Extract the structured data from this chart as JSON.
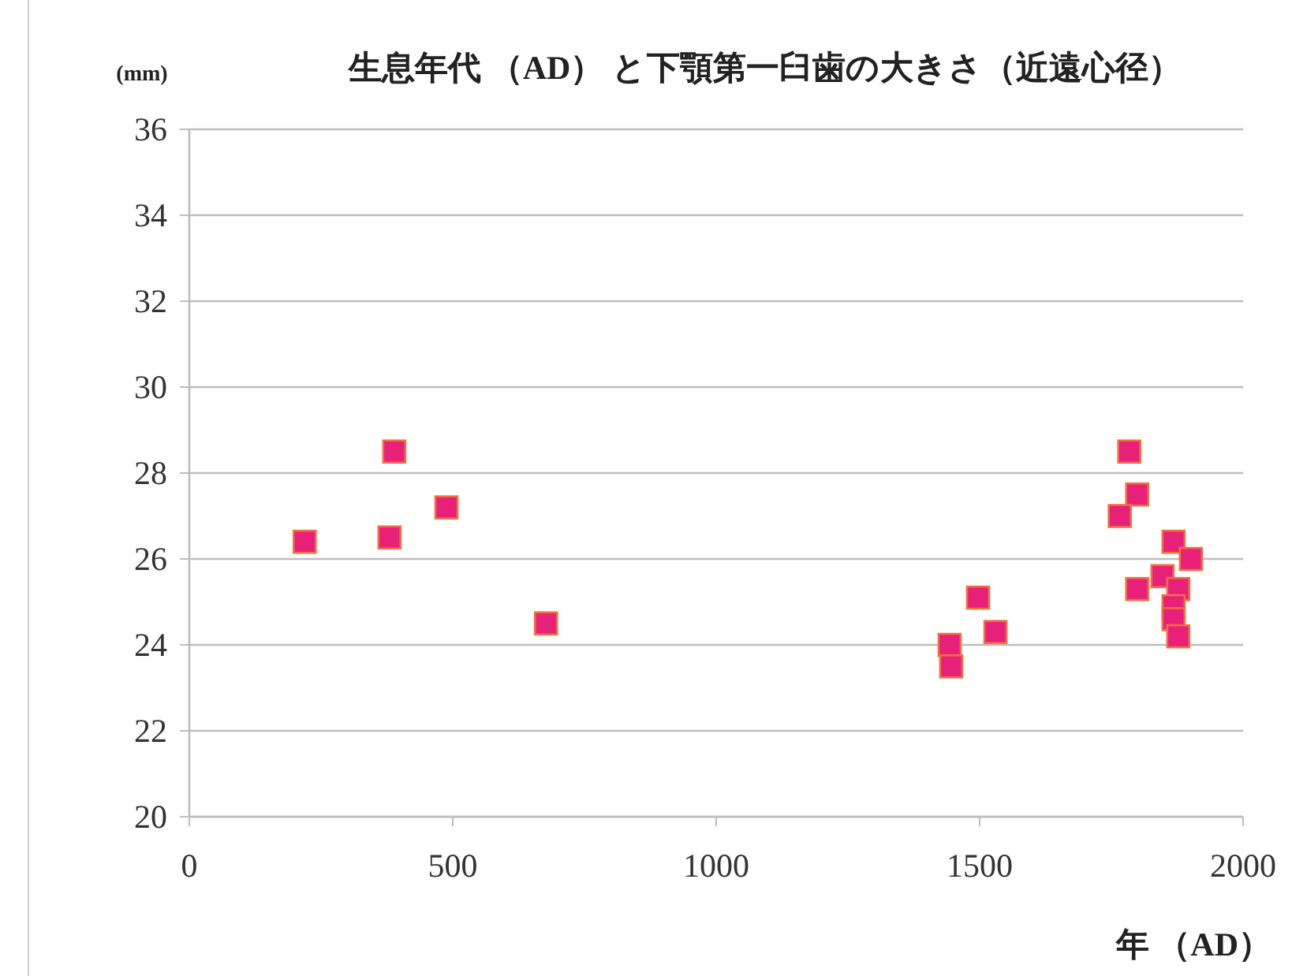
{
  "chart_data": {
    "type": "scatter",
    "title": "生息年代 （AD） と下顎第一臼歯の大きさ（近遠心径）",
    "ylabel": "(mm)",
    "xlabel": "年 （AD）",
    "x": [
      219,
      389,
      380,
      488,
      677,
      1443,
      1446,
      1497,
      1530,
      1784,
      1799,
      1766,
      1799,
      1868,
      1901,
      1847,
      1877,
      1868,
      1868,
      1877
    ],
    "series": [
      {
        "color": "#e8207a",
        "values": [
          26.4,
          28.5,
          26.5,
          27.2,
          24.5,
          24.0,
          23.5,
          25.1,
          24.3,
          28.5,
          27.5,
          27.0,
          25.3,
          26.4,
          26.0,
          25.6,
          25.3,
          24.9,
          24.6,
          24.2
        ]
      }
    ],
    "xlim": [
      0,
      2000
    ],
    "xticks": [
      0,
      500,
      1000,
      1500,
      2000
    ],
    "ylim": [
      20,
      36
    ],
    "yticks": [
      20,
      22,
      24,
      26,
      28,
      30,
      32,
      34,
      36
    ],
    "grid": "y",
    "marker": "square"
  }
}
